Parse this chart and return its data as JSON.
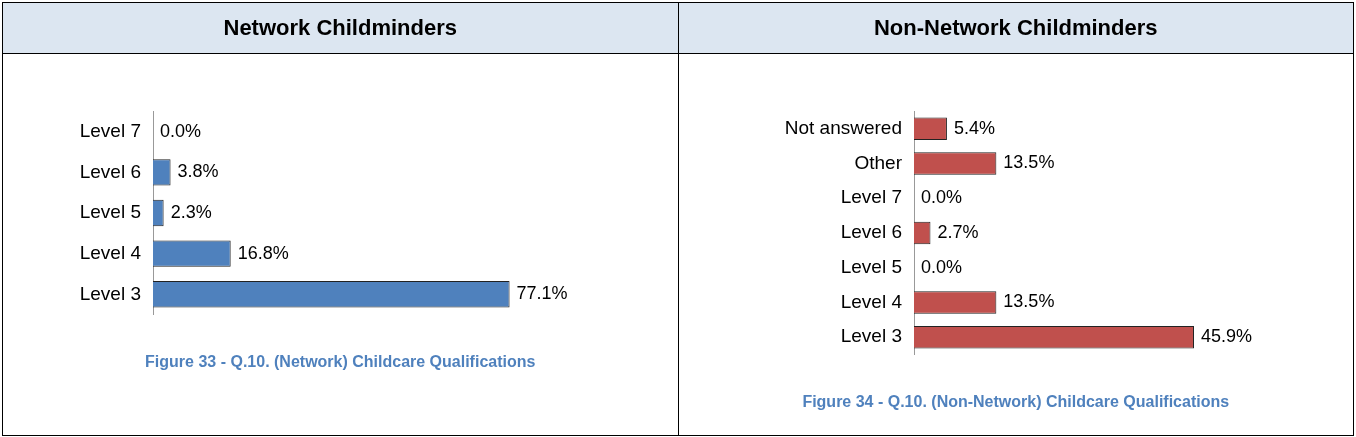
{
  "chart_data": [
    {
      "type": "bar",
      "orientation": "horizontal",
      "title": "Network Childminders",
      "categories": [
        "Level 7",
        "Level 6",
        "Level 5",
        "Level 4",
        "Level 3"
      ],
      "values": [
        0.0,
        3.8,
        2.3,
        16.8,
        77.1
      ],
      "value_labels": [
        "0.0%",
        "3.8%",
        "2.3%",
        "16.8%",
        "77.1%"
      ],
      "color": "#4f81bd",
      "tick_labels": "y",
      "grid": false,
      "legend": false,
      "annotations": [
        "Figure 33 - Q.10. (Network) Childcare Qualifications"
      ]
    },
    {
      "type": "bar",
      "orientation": "horizontal",
      "title": "Non-Network Childminders",
      "categories": [
        "Not answered",
        "Other",
        "Level 7",
        "Level 6",
        "Level 5",
        "Level 4",
        "Level 3"
      ],
      "values": [
        5.4,
        13.5,
        0.0,
        2.7,
        0.0,
        13.5,
        45.9
      ],
      "value_labels": [
        "5.4%",
        "13.5%",
        "0.0%",
        "2.7%",
        "0.0%",
        "13.5%",
        "45.9%"
      ],
      "color": "#c0504d",
      "tick_labels": "y",
      "grid": false,
      "legend": false,
      "annotations": [
        "Figure 34 - Q.10. (Non-Network) Childcare Qualifications"
      ]
    }
  ]
}
